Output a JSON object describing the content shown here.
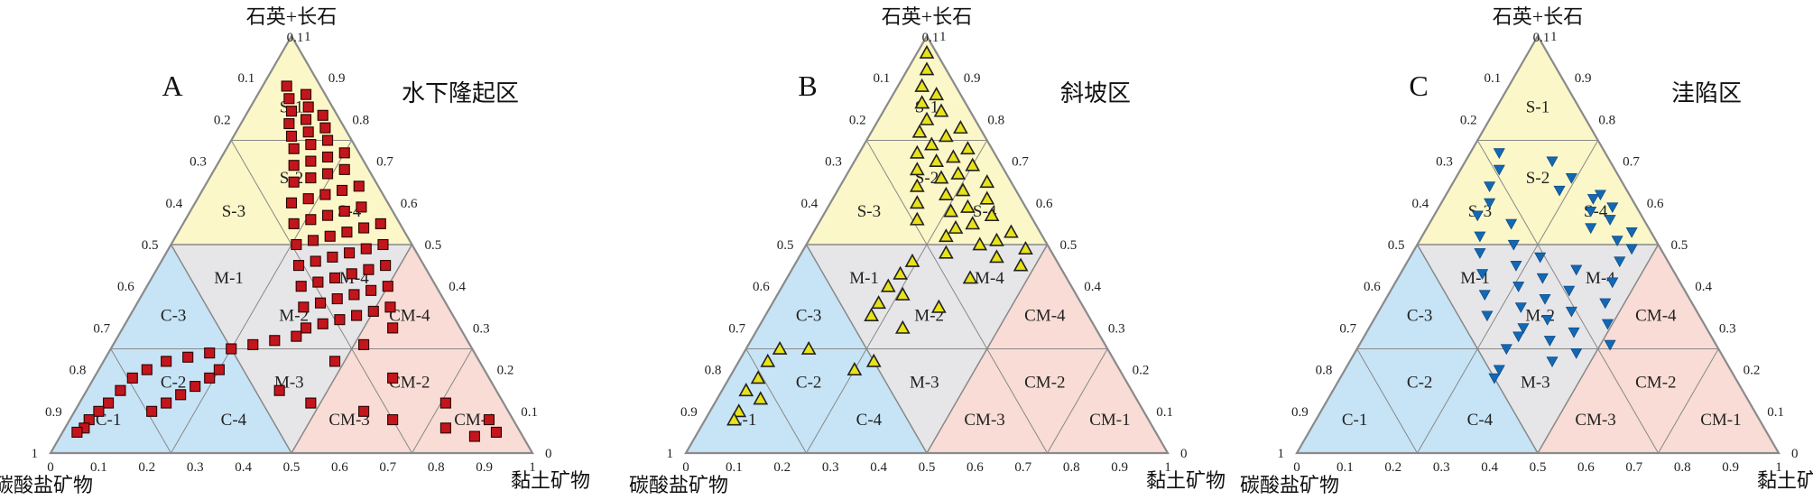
{
  "corner_labels": {
    "top": "石英+长石",
    "left": "碳酸盐矿物",
    "right": "黏土矿物"
  },
  "tick_labels": [
    "0",
    "0.1",
    "0.2",
    "0.3",
    "0.4",
    "0.5",
    "0.6",
    "0.7",
    "0.8",
    "0.9",
    "1"
  ],
  "field_labels": [
    "S-1",
    "S-2",
    "S-3",
    "S-4",
    "M-1",
    "M-2",
    "M-3",
    "M-4",
    "C-1",
    "C-2",
    "C-3",
    "C-4",
    "CM-1",
    "CM-2",
    "CM-3",
    "CM-4"
  ],
  "colors": {
    "siliceous": "#fbf7c8",
    "mixed": "#e6e6e8",
    "calcareous": "#c6e4f6",
    "argillaceous": "#f8dcd5",
    "frame": "#8a8a8a",
    "inner_line": "#ffffff"
  },
  "chart_data": [
    {
      "type": "scatter",
      "subtype": "ternary",
      "panel_letter": "A",
      "title": "水下隆起区",
      "marker": "square",
      "marker_color": "#c3161c",
      "point_count_approx": 400,
      "points_quartz_carbonate_clay": [
        [
          0.88,
          0.07,
          0.05
        ],
        [
          0.86,
          0.04,
          0.1
        ],
        [
          0.85,
          0.08,
          0.07
        ],
        [
          0.83,
          0.05,
          0.12
        ],
        [
          0.82,
          0.09,
          0.09
        ],
        [
          0.81,
          0.03,
          0.16
        ],
        [
          0.8,
          0.07,
          0.13
        ],
        [
          0.79,
          0.11,
          0.1
        ],
        [
          0.78,
          0.04,
          0.18
        ],
        [
          0.77,
          0.08,
          0.15
        ],
        [
          0.76,
          0.12,
          0.12
        ],
        [
          0.75,
          0.05,
          0.2
        ],
        [
          0.74,
          0.09,
          0.17
        ],
        [
          0.73,
          0.13,
          0.14
        ],
        [
          0.72,
          0.03,
          0.25
        ],
        [
          0.71,
          0.07,
          0.22
        ],
        [
          0.7,
          0.11,
          0.19
        ],
        [
          0.69,
          0.15,
          0.16
        ],
        [
          0.68,
          0.05,
          0.27
        ],
        [
          0.67,
          0.09,
          0.24
        ],
        [
          0.66,
          0.13,
          0.21
        ],
        [
          0.65,
          0.17,
          0.18
        ],
        [
          0.64,
          0.04,
          0.32
        ],
        [
          0.63,
          0.08,
          0.29
        ],
        [
          0.62,
          0.12,
          0.26
        ],
        [
          0.61,
          0.16,
          0.23
        ],
        [
          0.6,
          0.2,
          0.2
        ],
        [
          0.59,
          0.06,
          0.35
        ],
        [
          0.58,
          0.1,
          0.32
        ],
        [
          0.57,
          0.14,
          0.29
        ],
        [
          0.56,
          0.18,
          0.26
        ],
        [
          0.55,
          0.22,
          0.23
        ],
        [
          0.55,
          0.04,
          0.41
        ],
        [
          0.54,
          0.08,
          0.38
        ],
        [
          0.53,
          0.12,
          0.35
        ],
        [
          0.52,
          0.16,
          0.32
        ],
        [
          0.51,
          0.2,
          0.29
        ],
        [
          0.5,
          0.24,
          0.26
        ],
        [
          0.5,
          0.06,
          0.44
        ],
        [
          0.49,
          0.1,
          0.41
        ],
        [
          0.48,
          0.14,
          0.38
        ],
        [
          0.47,
          0.18,
          0.35
        ],
        [
          0.46,
          0.22,
          0.32
        ],
        [
          0.45,
          0.26,
          0.29
        ],
        [
          0.45,
          0.08,
          0.47
        ],
        [
          0.44,
          0.12,
          0.44
        ],
        [
          0.43,
          0.16,
          0.41
        ],
        [
          0.42,
          0.2,
          0.38
        ],
        [
          0.41,
          0.24,
          0.35
        ],
        [
          0.4,
          0.28,
          0.32
        ],
        [
          0.4,
          0.1,
          0.5
        ],
        [
          0.39,
          0.14,
          0.47
        ],
        [
          0.38,
          0.18,
          0.44
        ],
        [
          0.37,
          0.22,
          0.41
        ],
        [
          0.36,
          0.26,
          0.38
        ],
        [
          0.35,
          0.3,
          0.35
        ],
        [
          0.35,
          0.12,
          0.53
        ],
        [
          0.34,
          0.16,
          0.5
        ],
        [
          0.33,
          0.2,
          0.47
        ],
        [
          0.32,
          0.24,
          0.44
        ],
        [
          0.31,
          0.28,
          0.41
        ],
        [
          0.3,
          0.32,
          0.38
        ],
        [
          0.3,
          0.14,
          0.56
        ],
        [
          0.28,
          0.35,
          0.37
        ],
        [
          0.27,
          0.4,
          0.33
        ],
        [
          0.26,
          0.45,
          0.29
        ],
        [
          0.25,
          0.5,
          0.25
        ],
        [
          0.24,
          0.55,
          0.21
        ],
        [
          0.23,
          0.6,
          0.17
        ],
        [
          0.22,
          0.65,
          0.13
        ],
        [
          0.2,
          0.7,
          0.1
        ],
        [
          0.18,
          0.74,
          0.08
        ],
        [
          0.15,
          0.78,
          0.07
        ],
        [
          0.12,
          0.82,
          0.06
        ],
        [
          0.1,
          0.85,
          0.05
        ],
        [
          0.08,
          0.88,
          0.04
        ],
        [
          0.06,
          0.9,
          0.04
        ],
        [
          0.05,
          0.92,
          0.03
        ],
        [
          0.16,
          0.62,
          0.22
        ],
        [
          0.14,
          0.66,
          0.2
        ],
        [
          0.12,
          0.7,
          0.18
        ],
        [
          0.1,
          0.74,
          0.16
        ],
        [
          0.18,
          0.58,
          0.24
        ],
        [
          0.2,
          0.55,
          0.25
        ],
        [
          0.15,
          0.45,
          0.4
        ],
        [
          0.12,
          0.4,
          0.48
        ],
        [
          0.1,
          0.3,
          0.6
        ],
        [
          0.08,
          0.25,
          0.67
        ],
        [
          0.06,
          0.15,
          0.79
        ],
        [
          0.04,
          0.1,
          0.86
        ],
        [
          0.08,
          0.05,
          0.87
        ],
        [
          0.05,
          0.05,
          0.9
        ],
        [
          0.12,
          0.12,
          0.76
        ],
        [
          0.18,
          0.2,
          0.62
        ],
        [
          0.22,
          0.3,
          0.48
        ],
        [
          0.26,
          0.22,
          0.52
        ]
      ]
    },
    {
      "type": "scatter",
      "subtype": "ternary",
      "panel_letter": "B",
      "title": "斜坡区",
      "marker": "triangle-up",
      "marker_color": "#e8e21a",
      "point_count_approx": 250,
      "points_quartz_carbonate_clay": [
        [
          0.96,
          0.02,
          0.02
        ],
        [
          0.92,
          0.04,
          0.04
        ],
        [
          0.88,
          0.07,
          0.05
        ],
        [
          0.86,
          0.05,
          0.09
        ],
        [
          0.84,
          0.09,
          0.07
        ],
        [
          0.82,
          0.06,
          0.12
        ],
        [
          0.8,
          0.1,
          0.1
        ],
        [
          0.78,
          0.04,
          0.18
        ],
        [
          0.77,
          0.13,
          0.1
        ],
        [
          0.76,
          0.08,
          0.16
        ],
        [
          0.74,
          0.12,
          0.14
        ],
        [
          0.73,
          0.05,
          0.22
        ],
        [
          0.72,
          0.16,
          0.12
        ],
        [
          0.71,
          0.09,
          0.2
        ],
        [
          0.7,
          0.13,
          0.17
        ],
        [
          0.69,
          0.06,
          0.25
        ],
        [
          0.68,
          0.18,
          0.14
        ],
        [
          0.67,
          0.1,
          0.23
        ],
        [
          0.66,
          0.14,
          0.2
        ],
        [
          0.65,
          0.05,
          0.3
        ],
        [
          0.64,
          0.2,
          0.16
        ],
        [
          0.63,
          0.11,
          0.26
        ],
        [
          0.62,
          0.15,
          0.23
        ],
        [
          0.61,
          0.07,
          0.32
        ],
        [
          0.6,
          0.22,
          0.18
        ],
        [
          0.59,
          0.12,
          0.29
        ],
        [
          0.58,
          0.16,
          0.26
        ],
        [
          0.57,
          0.08,
          0.35
        ],
        [
          0.56,
          0.24,
          0.2
        ],
        [
          0.55,
          0.13,
          0.32
        ],
        [
          0.54,
          0.17,
          0.29
        ],
        [
          0.53,
          0.06,
          0.41
        ],
        [
          0.52,
          0.2,
          0.28
        ],
        [
          0.51,
          0.1,
          0.39
        ],
        [
          0.5,
          0.14,
          0.36
        ],
        [
          0.49,
          0.05,
          0.46
        ],
        [
          0.48,
          0.22,
          0.3
        ],
        [
          0.47,
          0.12,
          0.41
        ],
        [
          0.46,
          0.3,
          0.24
        ],
        [
          0.45,
          0.08,
          0.47
        ],
        [
          0.43,
          0.34,
          0.23
        ],
        [
          0.42,
          0.2,
          0.38
        ],
        [
          0.4,
          0.38,
          0.22
        ],
        [
          0.38,
          0.36,
          0.26
        ],
        [
          0.36,
          0.42,
          0.22
        ],
        [
          0.35,
          0.3,
          0.35
        ],
        [
          0.33,
          0.45,
          0.22
        ],
        [
          0.3,
          0.4,
          0.3
        ],
        [
          0.25,
          0.68,
          0.07
        ],
        [
          0.22,
          0.72,
          0.06
        ],
        [
          0.18,
          0.76,
          0.06
        ],
        [
          0.15,
          0.8,
          0.05
        ],
        [
          0.13,
          0.78,
          0.09
        ],
        [
          0.1,
          0.84,
          0.06
        ],
        [
          0.08,
          0.86,
          0.06
        ],
        [
          0.2,
          0.55,
          0.25
        ],
        [
          0.22,
          0.5,
          0.28
        ],
        [
          0.25,
          0.62,
          0.13
        ]
      ]
    },
    {
      "type": "scatter",
      "subtype": "ternary",
      "panel_letter": "C",
      "title": "洼陷区",
      "marker": "triangle-down",
      "marker_color": "#1268b3",
      "point_count_approx": 180,
      "points_quartz_carbonate_clay": [
        [
          0.72,
          0.22,
          0.06
        ],
        [
          0.7,
          0.12,
          0.18
        ],
        [
          0.68,
          0.24,
          0.08
        ],
        [
          0.66,
          0.1,
          0.24
        ],
        [
          0.64,
          0.28,
          0.08
        ],
        [
          0.63,
          0.14,
          0.23
        ],
        [
          0.62,
          0.06,
          0.32
        ],
        [
          0.61,
          0.08,
          0.31
        ],
        [
          0.6,
          0.3,
          0.1
        ],
        [
          0.59,
          0.05,
          0.36
        ],
        [
          0.58,
          0.1,
          0.32
        ],
        [
          0.57,
          0.34,
          0.09
        ],
        [
          0.56,
          0.07,
          0.37
        ],
        [
          0.55,
          0.28,
          0.17
        ],
        [
          0.54,
          0.12,
          0.34
        ],
        [
          0.53,
          0.04,
          0.43
        ],
        [
          0.52,
          0.36,
          0.12
        ],
        [
          0.51,
          0.08,
          0.41
        ],
        [
          0.5,
          0.3,
          0.2
        ],
        [
          0.49,
          0.06,
          0.45
        ],
        [
          0.48,
          0.38,
          0.14
        ],
        [
          0.47,
          0.26,
          0.27
        ],
        [
          0.46,
          0.1,
          0.44
        ],
        [
          0.45,
          0.32,
          0.23
        ],
        [
          0.44,
          0.2,
          0.36
        ],
        [
          0.43,
          0.4,
          0.17
        ],
        [
          0.42,
          0.28,
          0.3
        ],
        [
          0.41,
          0.14,
          0.45
        ],
        [
          0.4,
          0.34,
          0.26
        ],
        [
          0.39,
          0.24,
          0.37
        ],
        [
          0.38,
          0.42,
          0.2
        ],
        [
          0.37,
          0.3,
          0.33
        ],
        [
          0.36,
          0.18,
          0.46
        ],
        [
          0.35,
          0.36,
          0.29
        ],
        [
          0.34,
          0.26,
          0.4
        ],
        [
          0.33,
          0.44,
          0.23
        ],
        [
          0.32,
          0.32,
          0.36
        ],
        [
          0.31,
          0.2,
          0.49
        ],
        [
          0.3,
          0.38,
          0.32
        ],
        [
          0.29,
          0.28,
          0.43
        ],
        [
          0.28,
          0.4,
          0.32
        ],
        [
          0.27,
          0.34,
          0.39
        ],
        [
          0.26,
          0.22,
          0.52
        ],
        [
          0.25,
          0.44,
          0.31
        ],
        [
          0.24,
          0.3,
          0.46
        ],
        [
          0.22,
          0.36,
          0.42
        ],
        [
          0.2,
          0.48,
          0.32
        ],
        [
          0.18,
          0.5,
          0.32
        ]
      ]
    }
  ]
}
